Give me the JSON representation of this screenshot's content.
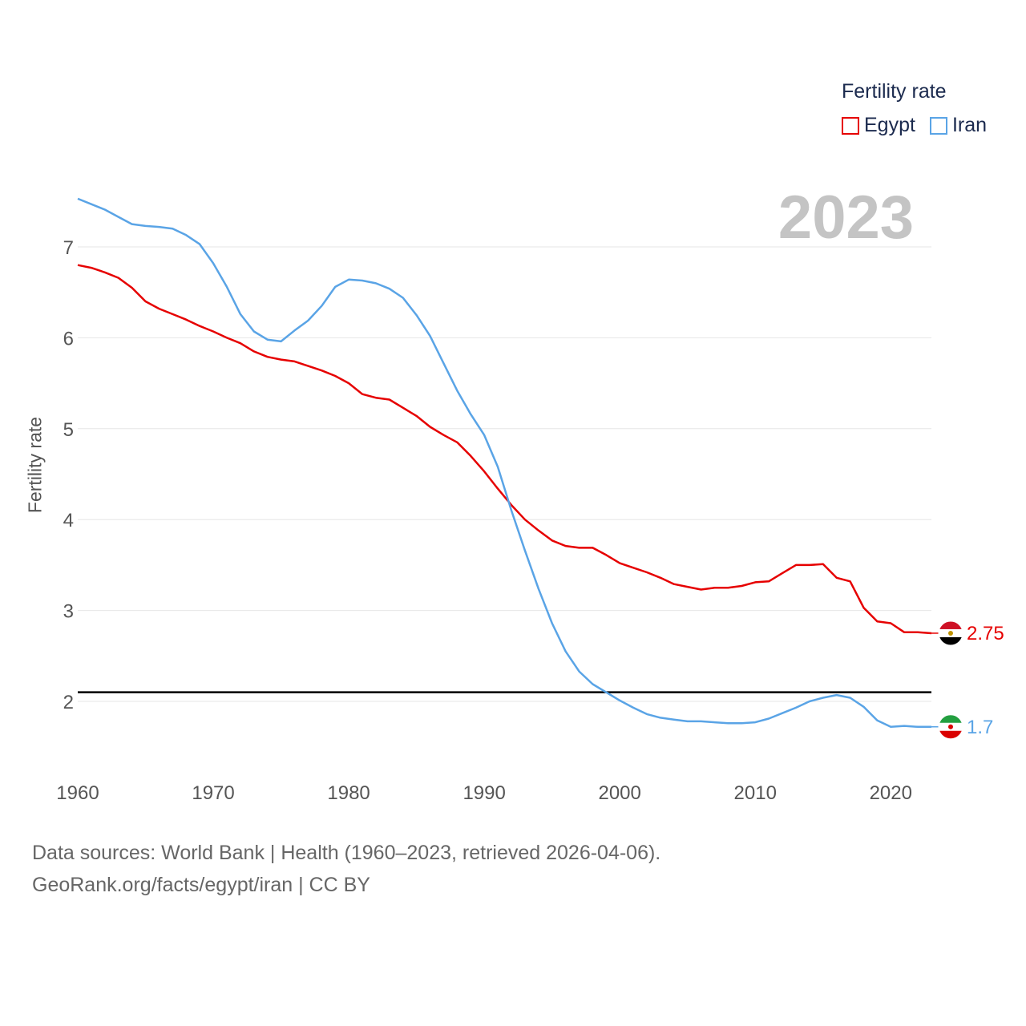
{
  "legend": {
    "title": "Fertility rate",
    "items": [
      {
        "name": "Egypt",
        "color": "#e60000"
      },
      {
        "name": "Iran",
        "color": "#5aa4e6"
      }
    ]
  },
  "year_label": "2023",
  "source": {
    "line1": "Data sources: World Bank | Health (1960–2023, retrieved 2026-04-06).",
    "line2": "GeoRank.org/facts/egypt/iran | CC BY"
  },
  "chart_data": {
    "type": "line",
    "title": "Fertility rate",
    "xlabel": "",
    "ylabel": "Fertility rate",
    "xlim": [
      1960,
      2023
    ],
    "ylim": [
      1.4,
      7.6
    ],
    "xticks": [
      1960,
      1970,
      1980,
      1990,
      2000,
      2010,
      2020
    ],
    "yticks": [
      2,
      3,
      4,
      5,
      6,
      7
    ],
    "grid": true,
    "reference_line": 2.1,
    "x": [
      1960,
      1961,
      1962,
      1963,
      1964,
      1965,
      1966,
      1967,
      1968,
      1969,
      1970,
      1971,
      1972,
      1973,
      1974,
      1975,
      1976,
      1977,
      1978,
      1979,
      1980,
      1981,
      1982,
      1983,
      1984,
      1985,
      1986,
      1987,
      1988,
      1989,
      1990,
      1991,
      1992,
      1993,
      1994,
      1995,
      1996,
      1997,
      1998,
      1999,
      2000,
      2001,
      2002,
      2003,
      2004,
      2005,
      2006,
      2007,
      2008,
      2009,
      2010,
      2011,
      2012,
      2013,
      2014,
      2015,
      2016,
      2017,
      2018,
      2019,
      2020,
      2021,
      2022,
      2023
    ],
    "series": [
      {
        "name": "Egypt",
        "color": "#e60000",
        "end_label": "2.75",
        "values": [
          6.8,
          6.77,
          6.72,
          6.66,
          6.55,
          6.4,
          6.32,
          6.26,
          6.2,
          6.13,
          6.07,
          6.0,
          5.94,
          5.85,
          5.79,
          5.76,
          5.74,
          5.69,
          5.64,
          5.58,
          5.5,
          5.38,
          5.34,
          5.32,
          5.23,
          5.14,
          5.02,
          4.93,
          4.85,
          4.7,
          4.53,
          4.34,
          4.16,
          4.0,
          3.88,
          3.77,
          3.71,
          3.69,
          3.69,
          3.61,
          3.52,
          3.47,
          3.42,
          3.36,
          3.29,
          3.26,
          3.23,
          3.25,
          3.25,
          3.27,
          3.31,
          3.32,
          3.41,
          3.5,
          3.5,
          3.51,
          3.36,
          3.32,
          3.03,
          2.88,
          2.86,
          2.76,
          2.76,
          2.75
        ]
      },
      {
        "name": "Iran",
        "color": "#5aa4e6",
        "end_label": "1.7",
        "values": [
          7.53,
          7.47,
          7.41,
          7.33,
          7.25,
          7.23,
          7.22,
          7.2,
          7.13,
          7.03,
          6.82,
          6.56,
          6.26,
          6.07,
          5.98,
          5.96,
          6.08,
          6.19,
          6.35,
          6.56,
          6.64,
          6.63,
          6.6,
          6.54,
          6.44,
          6.25,
          6.02,
          5.72,
          5.42,
          5.16,
          4.93,
          4.58,
          4.1,
          3.66,
          3.24,
          2.86,
          2.55,
          2.33,
          2.19,
          2.1,
          2.01,
          1.93,
          1.86,
          1.82,
          1.8,
          1.78,
          1.78,
          1.77,
          1.76,
          1.76,
          1.77,
          1.81,
          1.87,
          1.93,
          2.0,
          2.04,
          2.07,
          2.04,
          1.94,
          1.79,
          1.72,
          1.73,
          1.72,
          1.72
        ]
      }
    ]
  }
}
